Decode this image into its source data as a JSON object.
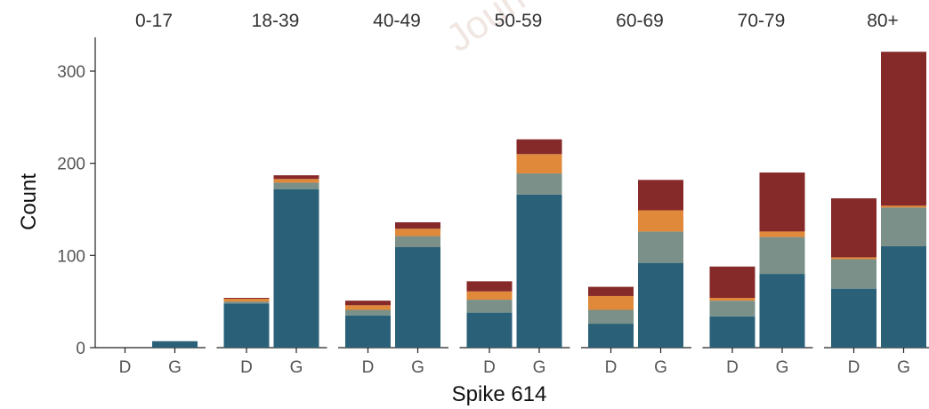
{
  "chart_data": {
    "type": "bar",
    "stacked": true,
    "faceted": true,
    "facets": [
      "0-17",
      "18-39",
      "40-49",
      "50-59",
      "60-69",
      "70-79",
      "80+"
    ],
    "categories": [
      "D",
      "G"
    ],
    "xlabel": "Spike 614",
    "ylabel": "Count",
    "ylim": [
      0,
      340
    ],
    "yticks": [
      0,
      100,
      200,
      300
    ],
    "legend": "none",
    "grid": false,
    "colors": [
      "#2b6178",
      "#7a9088",
      "#e0893a",
      "#862a29"
    ],
    "series": [
      {
        "values": [
          [
            0,
            7
          ],
          [
            48,
            172
          ],
          [
            35,
            109
          ],
          [
            38,
            166
          ],
          [
            26,
            92
          ],
          [
            34,
            80
          ],
          [
            64,
            110
          ]
        ]
      },
      {
        "values": [
          [
            0,
            0
          ],
          [
            2,
            7
          ],
          [
            6,
            12
          ],
          [
            14,
            23
          ],
          [
            15,
            34
          ],
          [
            17,
            40
          ],
          [
            32,
            42
          ]
        ]
      },
      {
        "values": [
          [
            0,
            0
          ],
          [
            3,
            4
          ],
          [
            5,
            8
          ],
          [
            9,
            21
          ],
          [
            15,
            23
          ],
          [
            3,
            6
          ],
          [
            2,
            2
          ]
        ]
      },
      {
        "values": [
          [
            0,
            0
          ],
          [
            1,
            4
          ],
          [
            5,
            7
          ],
          [
            11,
            16
          ],
          [
            10,
            33
          ],
          [
            34,
            64
          ],
          [
            64,
            167
          ]
        ]
      }
    ]
  },
  "watermark": "Journal Pre-proof"
}
